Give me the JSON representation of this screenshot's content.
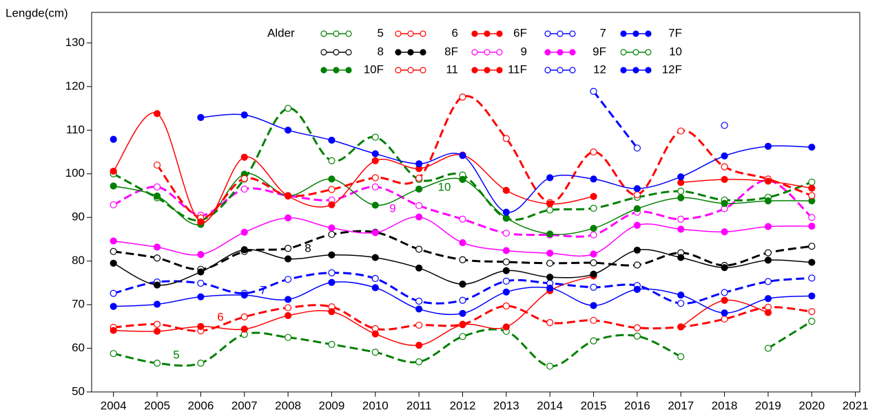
{
  "chart_data": {
    "type": "scatter",
    "y_label": "Lengde(cm)",
    "legend_title": "Alder",
    "xlim": [
      2003.5,
      2021.1
    ],
    "ylim": [
      50,
      137
    ],
    "xticks": [
      2004,
      2005,
      2006,
      2007,
      2008,
      2009,
      2010,
      2011,
      2012,
      2013,
      2014,
      2015,
      2016,
      2017,
      2018,
      2019,
      2020,
      2021
    ],
    "yticks": [
      50,
      60,
      70,
      80,
      90,
      100,
      110,
      120,
      130
    ],
    "x": [
      2004,
      2005,
      2006,
      2007,
      2008,
      2009,
      2010,
      2011,
      2012,
      2013,
      2014,
      2015,
      2016,
      2017,
      2018,
      2019,
      2020
    ],
    "annotations": [
      "5",
      "6",
      "7",
      "8",
      "9",
      "10"
    ],
    "series": [
      {
        "name": "5",
        "color": "#008000",
        "filled": false,
        "values": [
          58.8,
          56.6,
          56.6,
          63.2,
          62.5,
          60.9,
          59.1,
          56.9,
          62.7,
          63.9,
          55.9,
          61.7,
          62.8,
          58.1,
          null,
          60.0,
          66.2
        ]
      },
      {
        "name": "6",
        "color": "#ff0000",
        "filled": false,
        "values": [
          64.8,
          65.5,
          64.0,
          67.2,
          69.3,
          69.5,
          64.5,
          65.3,
          65.5,
          69.7,
          65.9,
          66.4,
          64.7,
          64.9,
          66.7,
          69.4,
          68.4
        ]
      },
      {
        "name": "6F",
        "color": "#ff0000",
        "filled": true,
        "values": [
          64.1,
          63.9,
          65.0,
          64.4,
          67.5,
          68.4,
          63.3,
          60.7,
          65.4,
          64.9,
          73.2,
          76.6,
          null,
          64.9,
          71.0,
          68.2,
          null
        ]
      },
      {
        "name": "7",
        "color": "#0000ff",
        "filled": false,
        "values": [
          72.6,
          75.2,
          74.9,
          72.6,
          75.8,
          77.3,
          76.0,
          70.8,
          71.0,
          75.4,
          74.9,
          74.0,
          74.4,
          70.3,
          72.8,
          75.3,
          76.1
        ]
      },
      {
        "name": "7F",
        "color": "#0000ff",
        "filled": true,
        "values": [
          69.6,
          70.1,
          71.8,
          72.2,
          71.2,
          75.1,
          73.9,
          69.0,
          68.0,
          72.9,
          73.8,
          69.8,
          73.5,
          72.2,
          68.1,
          71.4,
          72.0
        ]
      },
      {
        "name": "8",
        "color": "#000000",
        "filled": false,
        "values": [
          82.2,
          80.7,
          78.1,
          82.2,
          82.9,
          86.1,
          86.6,
          82.7,
          80.3,
          79.8,
          79.5,
          79.6,
          79.1,
          81.9,
          79.0,
          81.9,
          83.4
        ]
      },
      {
        "name": "8F",
        "color": "#000000",
        "filled": true,
        "values": [
          79.5,
          74.5,
          77.5,
          82.6,
          80.5,
          81.4,
          80.8,
          78.4,
          74.7,
          77.8,
          76.3,
          77.0,
          82.5,
          80.8,
          78.5,
          80.2,
          79.7
        ]
      },
      {
        "name": "9",
        "color": "#ff00ff",
        "filled": false,
        "values": [
          92.9,
          97.0,
          90.5,
          96.5,
          95.0,
          94.0,
          97.0,
          92.7,
          89.6,
          86.4,
          86.0,
          86.0,
          91.2,
          89.6,
          92.0,
          98.5,
          90.0
        ]
      },
      {
        "name": "9F",
        "color": "#ff00ff",
        "filled": true,
        "values": [
          84.6,
          83.2,
          81.5,
          86.6,
          89.9,
          87.6,
          86.5,
          90.1,
          84.2,
          82.4,
          81.8,
          81.6,
          88.2,
          87.3,
          86.7,
          87.9,
          88.0
        ]
      },
      {
        "name": "10",
        "color": "#008000",
        "filled": false,
        "values": [
          100.0,
          94.5,
          89.4,
          98.8,
          115.0,
          103.0,
          108.4,
          98.7,
          99.7,
          89.8,
          91.7,
          92.1,
          94.6,
          96.0,
          94.0,
          94.6,
          98.1
        ]
      },
      {
        "name": "10F",
        "color": "#008000",
        "filled": true,
        "values": [
          97.2,
          94.9,
          88.4,
          99.9,
          95.0,
          98.8,
          92.8,
          96.5,
          98.7,
          89.9,
          86.2,
          87.5,
          92.0,
          94.5,
          93.2,
          93.8,
          93.8
        ]
      },
      {
        "name": "11",
        "color": "#ff0000",
        "filled": false,
        "values": [
          null,
          102.0,
          89.9,
          98.9,
          95.0,
          96.4,
          99.1,
          99.0,
          117.6,
          108.1,
          93.4,
          105.0,
          95.2,
          109.8,
          101.6,
          98.8,
          95.0
        ]
      },
      {
        "name": "11F",
        "color": "#ff0000",
        "filled": true,
        "values": [
          100.6,
          113.8,
          89.0,
          103.8,
          94.9,
          92.9,
          103.0,
          101.2,
          104.3,
          96.2,
          93.1,
          94.8,
          null,
          98.0,
          98.7,
          98.3,
          96.7
        ]
      },
      {
        "name": "12",
        "color": "#0000ff",
        "filled": false,
        "values": [
          null,
          null,
          null,
          null,
          null,
          null,
          null,
          null,
          null,
          null,
          null,
          118.9,
          105.9,
          null,
          111.1,
          null,
          null
        ]
      },
      {
        "name": "12F",
        "color": "#0000ff",
        "filled": true,
        "values": [
          107.9,
          null,
          112.9,
          113.5,
          110.0,
          107.7,
          104.6,
          102.3,
          104.2,
          91.2,
          99.1,
          98.8,
          96.6,
          99.3,
          104.1,
          106.3,
          106.1
        ]
      }
    ]
  }
}
